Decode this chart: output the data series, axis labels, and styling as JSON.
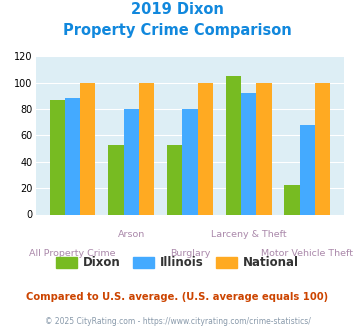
{
  "title_line1": "2019 Dixon",
  "title_line2": "Property Crime Comparison",
  "categories": [
    "All Property Crime",
    "Arson",
    "Burglary",
    "Larceny & Theft",
    "Motor Vehicle Theft"
  ],
  "dixon": [
    87,
    53,
    53,
    105,
    22
  ],
  "illinois": [
    88,
    80,
    80,
    92,
    68
  ],
  "national": [
    100,
    100,
    100,
    100,
    100
  ],
  "dixon_color": "#77bb22",
  "illinois_color": "#44aaff",
  "national_color": "#ffaa22",
  "ylim": [
    0,
    120
  ],
  "yticks": [
    0,
    20,
    40,
    60,
    80,
    100,
    120
  ],
  "chart_bg": "#ddeef5",
  "title_color": "#1188dd",
  "xlabel_color": "#aa88aa",
  "subtitle_text": "Compared to U.S. average. (U.S. average equals 100)",
  "subtitle_color": "#cc4400",
  "footer_text": "© 2025 CityRating.com - https://www.cityrating.com/crime-statistics/",
  "footer_color": "#8899aa",
  "legend_labels": [
    "Dixon",
    "Illinois",
    "National"
  ],
  "legend_color": "#333333"
}
